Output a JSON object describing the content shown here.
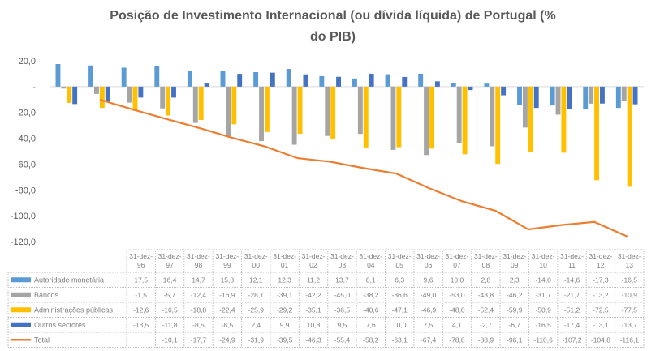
{
  "chart_data": {
    "type": "bar",
    "title_lines": [
      "Posição de Investimento Internacional (ou dívida líquida) de Portugal (%",
      "do PIB)"
    ],
    "categories": [
      [
        "31-dez-",
        "96"
      ],
      [
        "31-dez-",
        "97"
      ],
      [
        "31-dez-",
        "98"
      ],
      [
        "31-dez-",
        "99"
      ],
      [
        "31-dez-",
        "00"
      ],
      [
        "31-dez-",
        "01"
      ],
      [
        "31-dez-",
        "02"
      ],
      [
        "31-dez-",
        "03"
      ],
      [
        "31-dez-",
        "04"
      ],
      [
        "31-dez-",
        "05"
      ],
      [
        "31-dez-",
        "06"
      ],
      [
        "31-dez-",
        "07"
      ],
      [
        "31-dez-",
        "08"
      ],
      [
        "31-dez-",
        "09"
      ],
      [
        "31-dez-",
        "10"
      ],
      [
        "31-dez-",
        "11"
      ],
      [
        "31-dez-",
        "12"
      ],
      [
        "31-dez-",
        "13"
      ]
    ],
    "ylim": [
      -120,
      20
    ],
    "yticks": [
      20,
      0,
      -20,
      -40,
      -60,
      -80,
      -100,
      -120
    ],
    "ytick_labels": [
      "20,0",
      "-",
      "-20,0",
      "-40,0",
      "-60,0",
      "-80,0",
      "-100,0",
      "-120,0"
    ],
    "grid": false,
    "legend": "data-table",
    "series": [
      {
        "name": "Autoridade monetária",
        "kind": "bar",
        "color": "#5b9bd5",
        "values": [
          17.5,
          16.4,
          14.7,
          15.8,
          12.1,
          12.3,
          11.2,
          13.7,
          8.1,
          6.3,
          9.6,
          10.0,
          2.8,
          2.3,
          -14.0,
          -14.6,
          -17.3,
          -16.5
        ]
      },
      {
        "name": "Bancos",
        "kind": "bar",
        "color": "#a5a5a5",
        "values": [
          -1.5,
          -5.7,
          -12.4,
          -16.9,
          -28.1,
          -39.1,
          -42.2,
          -45.0,
          -38.2,
          -36.6,
          -49.0,
          -53.0,
          -43.8,
          -46.2,
          -31.7,
          -21.7,
          -13.2,
          -10.9
        ]
      },
      {
        "name": "Administrações públicas",
        "kind": "bar",
        "color": "#ffc000",
        "values": [
          -12.6,
          -16.5,
          -18.8,
          -22.4,
          -25.9,
          -29.2,
          -35.1,
          -36.5,
          -40.6,
          -47.1,
          -46.9,
          -48.0,
          -52.4,
          -59.9,
          -50.9,
          -51.2,
          -72.5,
          -77.5
        ]
      },
      {
        "name": "Outros sectores",
        "kind": "bar",
        "color": "#4472c4",
        "values": [
          -13.5,
          -11.8,
          -8.5,
          -8.5,
          2.4,
          9.9,
          10.8,
          9.5,
          7.6,
          10.0,
          7.5,
          4.1,
          -2.7,
          -6.7,
          -16.5,
          -17.4,
          -13.1,
          -13.7
        ]
      },
      {
        "name": "Total",
        "kind": "line",
        "color": "#ed7d31",
        "values": [
          null,
          -10.1,
          -17.7,
          -24.9,
          -31.9,
          -39.5,
          -46.3,
          -55.4,
          -58.2,
          -63.1,
          -67.4,
          -78.8,
          -88.9,
          -96.1,
          -110.6,
          -107.2,
          -104.8,
          -116.1
        ]
      }
    ]
  }
}
